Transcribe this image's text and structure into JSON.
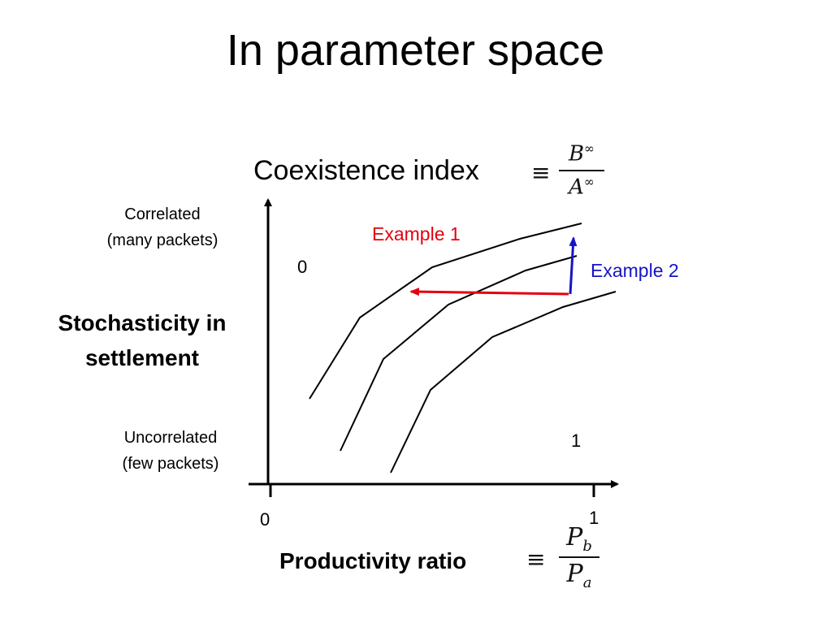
{
  "title": "In parameter space",
  "coexistence": {
    "label": "Coexistence index",
    "equiv": "≡",
    "numerator": "B",
    "numerator_sup": "∞",
    "denominator": "A",
    "denominator_sup": "∞"
  },
  "y_axis": {
    "label_line1": "Stochasticity in",
    "label_line2": "settlement",
    "top_line1": "Correlated",
    "top_line2": "(many packets)",
    "bottom_line1": "Uncorrelated",
    "bottom_line2": "(few packets)"
  },
  "x_axis": {
    "label": "Productivity ratio",
    "equiv": "≡",
    "numerator": "P",
    "numerator_sub": "b",
    "denominator": "P",
    "denominator_sub": "a",
    "tick_left": "0",
    "tick_right": "1"
  },
  "region_labels": {
    "upper_left": "0",
    "lower_right": "1"
  },
  "examples": {
    "example1": {
      "label": "Example 1",
      "color": "#e3000f"
    },
    "example2": {
      "label": "Example 2",
      "color": "#1414c8"
    }
  }
}
